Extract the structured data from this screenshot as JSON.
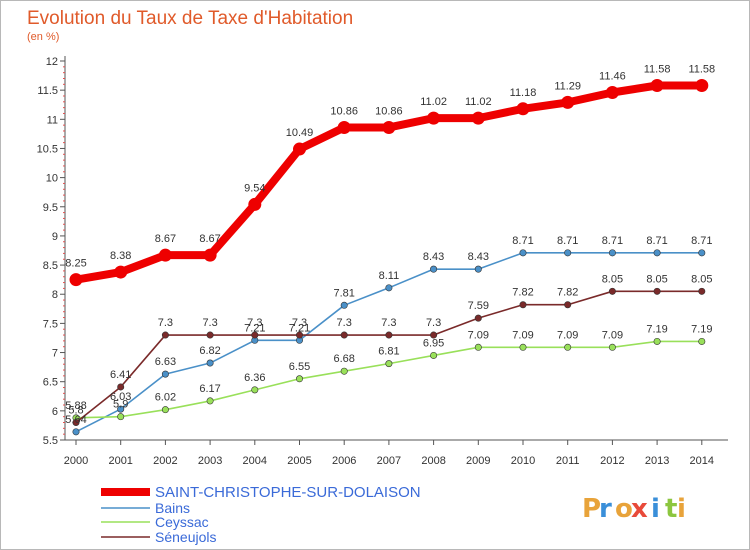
{
  "title": "Evolution du Taux de Taxe d'Habitation",
  "subtitle": "(en %)",
  "brand": {
    "letters": [
      "P",
      "r",
      "o",
      "x",
      "i",
      "t",
      "i"
    ],
    "colors": [
      "#e8a33a",
      "#3a8fd9",
      "#e8a33a",
      "#e84a3a",
      "#3a8fd9",
      "#8cc63f",
      "#e8a33a"
    ]
  },
  "chart_data": {
    "type": "line",
    "x": [
      2000,
      2001,
      2002,
      2003,
      2004,
      2005,
      2006,
      2007,
      2008,
      2009,
      2010,
      2011,
      2012,
      2013,
      2014
    ],
    "ylim": [
      5.5,
      12
    ],
    "yticks": [
      "5.5",
      "6",
      "6.5",
      "7",
      "7.5",
      "8",
      "8.5",
      "9",
      "9.5",
      "10",
      "10.5",
      "11",
      "11.5",
      "12"
    ],
    "grid": false,
    "legend_position": "bottom-left",
    "series": [
      {
        "name": "SAINT-CHRISTOPHE-SUR-DOLAISON",
        "color": "#ee0000",
        "values": [
          8.25,
          8.38,
          8.67,
          8.67,
          9.54,
          10.49,
          10.86,
          10.86,
          11.02,
          11.02,
          11.18,
          11.29,
          11.46,
          11.58,
          11.58
        ],
        "labels": [
          "8.25",
          "8.38",
          "8.67",
          "8.67",
          "9.54",
          "10.49",
          "10.86",
          "10.86",
          "11.02",
          "11.02",
          "11.18",
          "11.29",
          "11.46",
          "11.58",
          "11.58"
        ]
      },
      {
        "name": "Bains",
        "color": "#4a90c8",
        "values": [
          5.64,
          6.03,
          6.63,
          6.82,
          7.21,
          7.21,
          7.81,
          8.11,
          8.43,
          8.43,
          8.71,
          8.71,
          8.71,
          8.71,
          8.71
        ],
        "labels": [
          "5.64",
          "6.03",
          "6.63",
          "6.82",
          "7.21",
          "7.21",
          "7.81",
          "8.11",
          "8.43",
          "8.43",
          "8.71",
          "8.71",
          "8.71",
          "8.71",
          "8.71"
        ]
      },
      {
        "name": "Ceyssac",
        "color": "#99e05a",
        "values": [
          5.88,
          5.9,
          6.02,
          6.17,
          6.36,
          6.55,
          6.68,
          6.81,
          6.95,
          7.09,
          7.09,
          7.09,
          7.09,
          7.19,
          7.19
        ],
        "labels": [
          "5.88",
          "5.9",
          "6.02",
          "6.17",
          "6.36",
          "6.55",
          "6.68",
          "6.81",
          "6.95",
          "7.09",
          "7.09",
          "7.09",
          "7.09",
          "7.19",
          "7.19"
        ]
      },
      {
        "name": "Séneujols",
        "color": "#7a2a2a",
        "values": [
          5.8,
          6.41,
          7.3,
          7.3,
          7.3,
          7.3,
          7.3,
          7.3,
          7.3,
          7.59,
          7.82,
          7.82,
          8.05,
          8.05,
          8.05
        ],
        "labels": [
          "5.8",
          "6.41",
          "7.3",
          "7.3",
          "7.3",
          "7.3",
          "7.3",
          "7.3",
          "7.3",
          "7.59",
          "7.82",
          "7.82",
          "8.05",
          "8.05",
          "8.05"
        ]
      }
    ]
  }
}
